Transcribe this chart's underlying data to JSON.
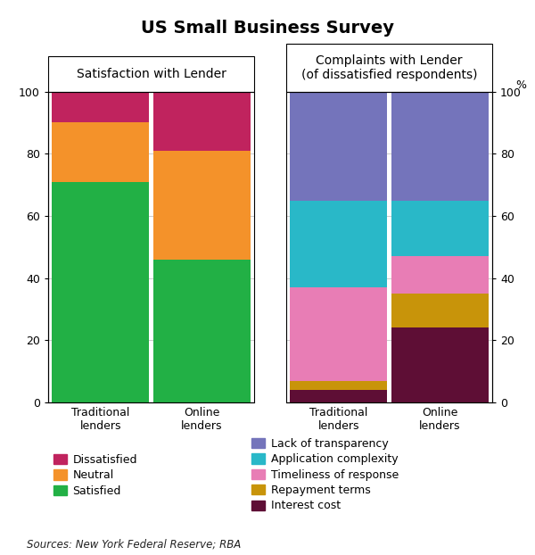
{
  "title": "US Small Business Survey",
  "panel1_title": "Satisfaction with Lender",
  "panel2_title": "Complaints with Lender\n(of dissatisfied respondents)",
  "source": "Sources: New York Federal Reserve; RBA",
  "ylabel": "%",
  "satisfaction_categories": [
    "Traditional\nlenders",
    "Online\nlenders"
  ],
  "satisfaction_data": {
    "Satisfied": [
      71,
      46
    ],
    "Neutral": [
      19,
      35
    ],
    "Dissatisfied": [
      10,
      19
    ]
  },
  "satisfaction_colors": {
    "Satisfied": "#22b045",
    "Neutral": "#f4922a",
    "Dissatisfied": "#c0235e"
  },
  "complaints_categories": [
    "Traditional\nlenders",
    "Online\nlenders"
  ],
  "complaints_data": {
    "Interest cost": [
      4,
      24
    ],
    "Repayment terms": [
      3,
      11
    ],
    "Timeliness of response": [
      30,
      12
    ],
    "Application complexity": [
      28,
      18
    ],
    "Lack of transparency": [
      35,
      35
    ]
  },
  "complaints_colors": {
    "Interest cost": "#5e0e35",
    "Repayment terms": "#c8940a",
    "Timeliness of response": "#e87db5",
    "Application complexity": "#29b8c8",
    "Lack of transparency": "#7474bb"
  },
  "ylim": [
    0,
    100
  ],
  "yticks": [
    0,
    20,
    40,
    60,
    80,
    100
  ],
  "bar_width": 0.52,
  "bar_positions": [
    0.28,
    0.82
  ],
  "background_color": "#ffffff",
  "grid_color": "#cccccc",
  "panel_label_fontsize": 10,
  "tick_fontsize": 9,
  "legend_fontsize": 9,
  "title_fontsize": 14
}
